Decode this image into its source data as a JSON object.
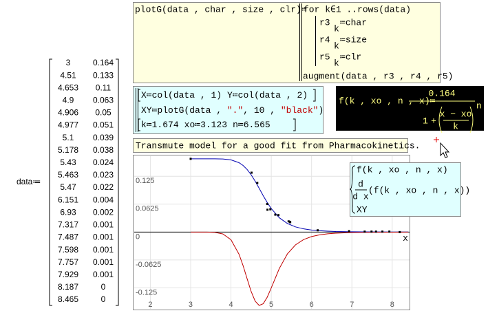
{
  "matrix": {
    "label": "data≔",
    "rows": [
      [
        3,
        0.164
      ],
      [
        4.51,
        0.133
      ],
      [
        4.653,
        0.11
      ],
      [
        4.9,
        0.063
      ],
      [
        4.906,
        0.05
      ],
      [
        4.977,
        0.051
      ],
      [
        5.1,
        0.039
      ],
      [
        5.178,
        0.038
      ],
      [
        5.43,
        0.024
      ],
      [
        5.463,
        0.023
      ],
      [
        5.47,
        0.022
      ],
      [
        6.151,
        0.004
      ],
      [
        6.93,
        0.002
      ],
      [
        7.317,
        0.001
      ],
      [
        7.487,
        0.001
      ],
      [
        7.598,
        0.001
      ],
      [
        7.757,
        0.001
      ],
      [
        7.929,
        0.001
      ],
      [
        8.187,
        0
      ],
      [
        8.465,
        0
      ]
    ]
  },
  "program": {
    "header": "plotG(data , char , size , clr)≔",
    "loop": "for k∈1 ..rows(data)",
    "assignments": [
      {
        "name": "r3",
        "index": "k",
        "expr": "≔char"
      },
      {
        "name": "r4",
        "index": "k",
        "expr": "≔size"
      },
      {
        "name": "r5",
        "index": "k",
        "expr": "≔clr"
      }
    ],
    "result": "augment(data , r3 , r4 , r5)"
  },
  "definitions": {
    "line1": [
      "X≔col(data , 1)",
      "Y≔col(data , 2)"
    ],
    "line2": [
      "XY≔plotG(data , ",
      "\".\"",
      ", 10 , ",
      "\"black\"",
      ")"
    ],
    "line3": [
      "k≔1.674",
      "xo≔3.123",
      "n≔6.565"
    ]
  },
  "model": {
    "lhs": "f(k , xo , n , x)≔",
    "numerator": "0.164",
    "one": "1",
    "plus": "+",
    "inner_num": "x − xo",
    "inner_den": "k",
    "power": "n"
  },
  "note": "Transmute model for a good fit from Pharmacokinetics.",
  "chart_data": {
    "type": "line",
    "xlabel": "x",
    "xlim": [
      1.6,
      8.43
    ],
    "ylim": [
      -0.172,
      0.17
    ],
    "xticks": [
      2,
      3,
      4,
      5,
      6,
      7,
      8
    ],
    "yticks": [
      -0.125,
      -0.0625,
      0,
      0.0625,
      0.125
    ],
    "grid": true,
    "series": [
      {
        "name": "f(k , xo , n , x)",
        "color": "#0000b0",
        "x": [
          3,
          3.2,
          3.4,
          3.6,
          3.8,
          4,
          4.2,
          4.3,
          4.4,
          4.5,
          4.6,
          4.7,
          4.8,
          4.9,
          5,
          5.2,
          5.4,
          5.6,
          5.8,
          6,
          6.2,
          6.4,
          6.6,
          7,
          7.5,
          8,
          8.4
        ],
        "values": [
          0.164,
          0.164,
          0.164,
          0.164,
          0.1636,
          0.1617,
          0.1554,
          0.1492,
          0.1403,
          0.1284,
          0.1139,
          0.0979,
          0.0815,
          0.0661,
          0.0526,
          0.032,
          0.0192,
          0.0116,
          0.0072,
          0.0046,
          0.003,
          0.002,
          0.0013,
          0.0007,
          0.0003,
          0.0002,
          0.0001
        ]
      },
      {
        "name": "(f(k , xo , n , x))",
        "operator_num": "d",
        "operator_den": "d x",
        "color": "#c00000",
        "x": [
          3,
          3.2,
          3.4,
          3.6,
          3.8,
          4,
          4.2,
          4.3,
          4.4,
          4.5,
          4.6,
          4.7,
          4.8,
          4.9,
          5,
          5.2,
          5.4,
          5.6,
          5.8,
          6,
          6.2,
          6.4,
          6.6,
          7,
          7.5,
          8,
          8.4
        ],
        "values": [
          0,
          0,
          0,
          -0.0006,
          -0.0042,
          -0.0171,
          -0.0497,
          -0.075,
          -0.1043,
          -0.1329,
          -0.1546,
          -0.1643,
          -0.1605,
          -0.1458,
          -0.1249,
          -0.0815,
          -0.0489,
          -0.0287,
          -0.0169,
          -0.0101,
          -0.0062,
          -0.0039,
          -0.0025,
          -0.0011,
          -0.0004,
          -0.0002,
          -0.0001
        ]
      },
      {
        "name": "XY",
        "type": "scatter",
        "color": "#000000",
        "x": [
          3,
          4.51,
          4.653,
          4.9,
          4.906,
          4.977,
          5.1,
          5.178,
          5.43,
          5.463,
          5.47,
          6.151,
          6.93,
          7.317,
          7.487,
          7.598,
          7.757,
          7.929,
          8.187,
          8.465
        ],
        "values": [
          0.164,
          0.133,
          0.11,
          0.063,
          0.05,
          0.051,
          0.039,
          0.038,
          0.024,
          0.023,
          0.022,
          0.004,
          0.002,
          0.001,
          0.001,
          0.001,
          0.001,
          0.001,
          0,
          0
        ]
      }
    ]
  }
}
